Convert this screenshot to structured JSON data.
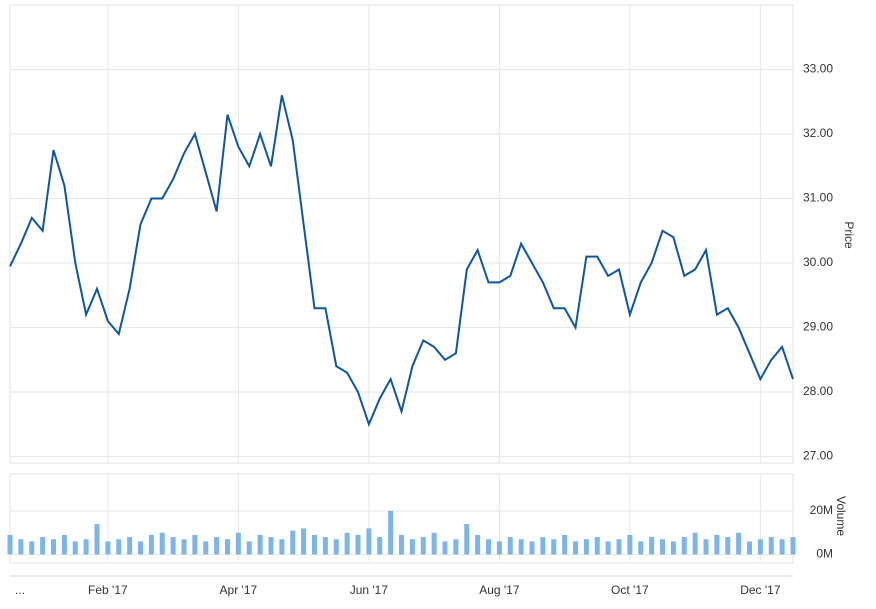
{
  "chart_data": [
    {
      "type": "line",
      "y_label": "Price",
      "color": "#0d56a6",
      "grid": true,
      "categories": [
        "...",
        null,
        null,
        null,
        null,
        null,
        null,
        null,
        null,
        "Feb '17",
        null,
        null,
        null,
        null,
        null,
        null,
        null,
        null,
        null,
        null,
        null,
        "Apr '17",
        null,
        null,
        null,
        null,
        null,
        null,
        null,
        null,
        null,
        null,
        null,
        "Jun '17",
        null,
        null,
        null,
        null,
        null,
        null,
        null,
        null,
        null,
        null,
        null,
        "Aug '17",
        null,
        null,
        null,
        null,
        null,
        null,
        null,
        null,
        null,
        null,
        null,
        "Oct '17",
        null,
        null,
        null,
        null,
        null,
        null,
        null,
        null,
        null,
        null,
        null,
        "Dec '17",
        null,
        null,
        null
      ],
      "values": [
        29.95,
        30.3,
        30.7,
        30.5,
        31.75,
        31.2,
        30.0,
        29.2,
        29.6,
        29.1,
        28.9,
        29.6,
        30.6,
        31.0,
        31.0,
        31.3,
        31.7,
        32.0,
        31.4,
        30.8,
        32.3,
        31.8,
        31.5,
        32.0,
        31.5,
        32.6,
        31.9,
        30.6,
        29.3,
        29.3,
        28.4,
        28.3,
        28.0,
        27.5,
        27.9,
        28.2,
        27.7,
        28.4,
        28.8,
        28.7,
        28.5,
        28.6,
        29.9,
        30.2,
        29.7,
        29.7,
        29.8,
        30.3,
        30.0,
        29.7,
        29.3,
        29.3,
        29.0,
        30.1,
        30.1,
        29.8,
        29.9,
        29.2,
        29.7,
        30.0,
        30.5,
        30.4,
        29.8,
        29.9,
        30.2,
        29.2,
        29.3,
        29.0,
        28.6,
        28.2,
        28.5,
        28.7,
        28.2
      ],
      "ylim": [
        26.9,
        34
      ],
      "yticks": [
        {
          "value": 27,
          "label": "27.00"
        },
        {
          "value": 28,
          "label": "28.00"
        },
        {
          "value": 29,
          "label": "29.00"
        },
        {
          "value": 30,
          "label": "30.00"
        },
        {
          "value": 31,
          "label": "31.00"
        },
        {
          "value": 32,
          "label": "32.00"
        },
        {
          "value": 33,
          "label": "33.00"
        }
      ]
    },
    {
      "type": "bar",
      "y_label": "Volume",
      "color": "#7cb5ec",
      "grid": true,
      "values": [
        9000000,
        7000000,
        6000000,
        8000000,
        7000000,
        9000000,
        6000000,
        7000000,
        14000000,
        6000000,
        7000000,
        8000000,
        6000000,
        9000000,
        10000000,
        8000000,
        7000000,
        9000000,
        6000000,
        8000000,
        7000000,
        10000000,
        6000000,
        9000000,
        8000000,
        7000000,
        11000000,
        12000000,
        9000000,
        8000000,
        7000000,
        10000000,
        9000000,
        12000000,
        8000000,
        20000000,
        9000000,
        7000000,
        8000000,
        10000000,
        6000000,
        7000000,
        14000000,
        9000000,
        7000000,
        6000000,
        8000000,
        7000000,
        6000000,
        8000000,
        7000000,
        9000000,
        6000000,
        7000000,
        8000000,
        6000000,
        7000000,
        9000000,
        6000000,
        8000000,
        7000000,
        6000000,
        8000000,
        10000000,
        7000000,
        9000000,
        8000000,
        10000000,
        6000000,
        7000000,
        8000000,
        7000000,
        8000000
      ],
      "ylim": [
        -3000000,
        37000000
      ],
      "yticks": [
        {
          "value": 0,
          "label": "0M"
        },
        {
          "value": 20000000,
          "label": "20M"
        }
      ]
    }
  ]
}
